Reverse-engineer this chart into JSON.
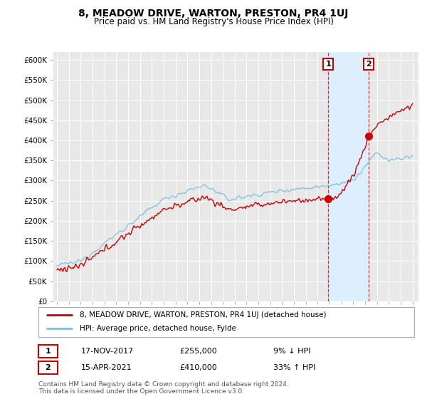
{
  "title": "8, MEADOW DRIVE, WARTON, PRESTON, PR4 1UJ",
  "subtitle": "Price paid vs. HM Land Registry's House Price Index (HPI)",
  "ylim": [
    0,
    620000
  ],
  "yticks": [
    0,
    50000,
    100000,
    150000,
    200000,
    250000,
    300000,
    350000,
    400000,
    450000,
    500000,
    550000,
    600000
  ],
  "ytick_labels": [
    "£0",
    "£50K",
    "£100K",
    "£150K",
    "£200K",
    "£250K",
    "£300K",
    "£350K",
    "£400K",
    "£450K",
    "£500K",
    "£550K",
    "£600K"
  ],
  "hpi_color": "#7fbfdf",
  "price_color": "#cc0000",
  "sale1_date": "17-NOV-2017",
  "sale1_price": 255000,
  "sale1_label": "9% ↓ HPI",
  "sale1_x": 2017.88,
  "sale2_date": "15-APR-2021",
  "sale2_price": 410000,
  "sale2_label": "33% ↑ HPI",
  "sale2_x": 2021.29,
  "legend_line1": "8, MEADOW DRIVE, WARTON, PRESTON, PR4 1UJ (detached house)",
  "legend_line2": "HPI: Average price, detached house, Fylde",
  "footnote": "Contains HM Land Registry data © Crown copyright and database right 2024.\nThis data is licensed under the Open Government Licence v3.0.",
  "background_color": "#ffffff",
  "plot_bg_color": "#e8e8e8",
  "shade_color": "#ddeeff",
  "grid_color": "#ffffff"
}
